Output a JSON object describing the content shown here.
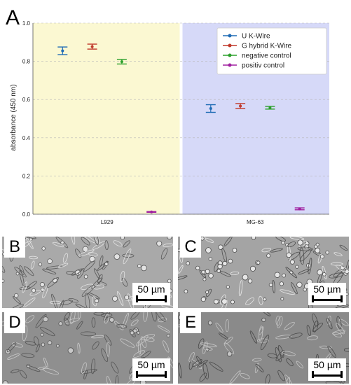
{
  "panel_a": {
    "letter": "A",
    "chart_data": {
      "type": "scatter",
      "ylabel": "absorbance (450 nm)",
      "xlabel": "",
      "ylim": [
        0.0,
        1.0
      ],
      "yticks": [
        "0.0",
        "0.2",
        "0.4",
        "0.6",
        "0.8",
        "1.0"
      ],
      "grid": true,
      "legend_position": "top-right",
      "groups": [
        {
          "label": "L929",
          "background": "#fbf8d2"
        },
        {
          "label": "MG-63",
          "background": "#d6d9f8"
        }
      ],
      "series": [
        {
          "name": "U K-Wire",
          "color": "#1f6bb5",
          "values": [
            0.855,
            0.553
          ],
          "errors": [
            0.02,
            0.02
          ]
        },
        {
          "name": "G hybrid K-Wire",
          "color": "#c0392b",
          "values": [
            0.877,
            0.566
          ],
          "errors": [
            0.013,
            0.013
          ]
        },
        {
          "name": "negative control",
          "color": "#2ca02c",
          "values": [
            0.798,
            0.557
          ],
          "errors": [
            0.012,
            0.007
          ]
        },
        {
          "name": "positiv control",
          "color": "#a020a0",
          "values": [
            0.012,
            0.028
          ],
          "errors": [
            0.002,
            0.005
          ]
        }
      ]
    }
  },
  "micrographs": [
    {
      "letter": "B",
      "scale_label": "50 µm"
    },
    {
      "letter": "C",
      "scale_label": "50 µm"
    },
    {
      "letter": "D",
      "scale_label": "50 µm"
    },
    {
      "letter": "E",
      "scale_label": "50 µm"
    }
  ]
}
